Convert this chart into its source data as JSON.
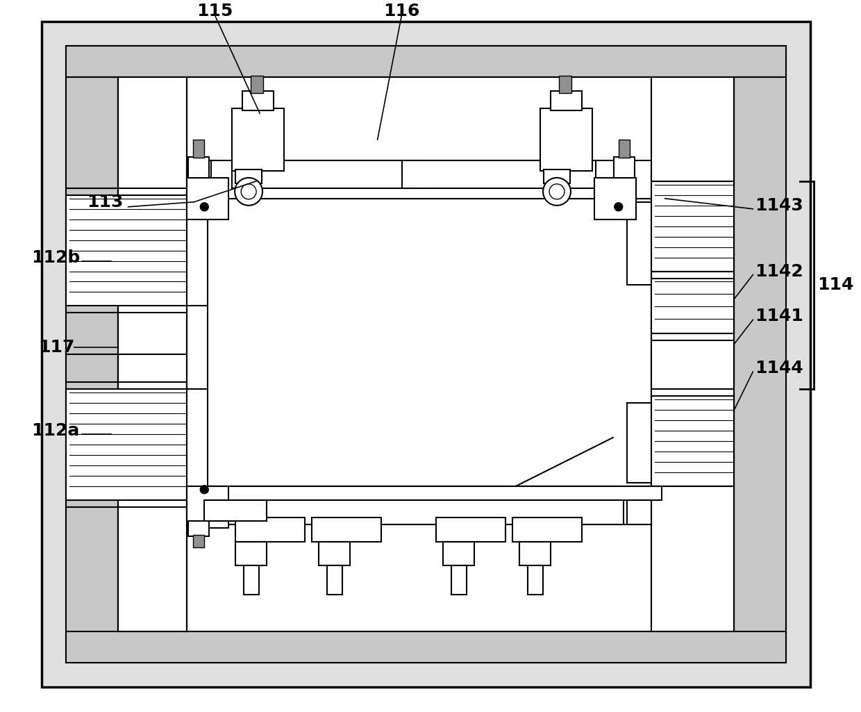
{
  "bg_color": "#ffffff",
  "lc": "#000000",
  "gray_light": "#c8c8c8",
  "gray_medium": "#b0b0b0",
  "white": "#ffffff",
  "figsize": [
    12.4,
    10.25
  ],
  "dpi": 100
}
